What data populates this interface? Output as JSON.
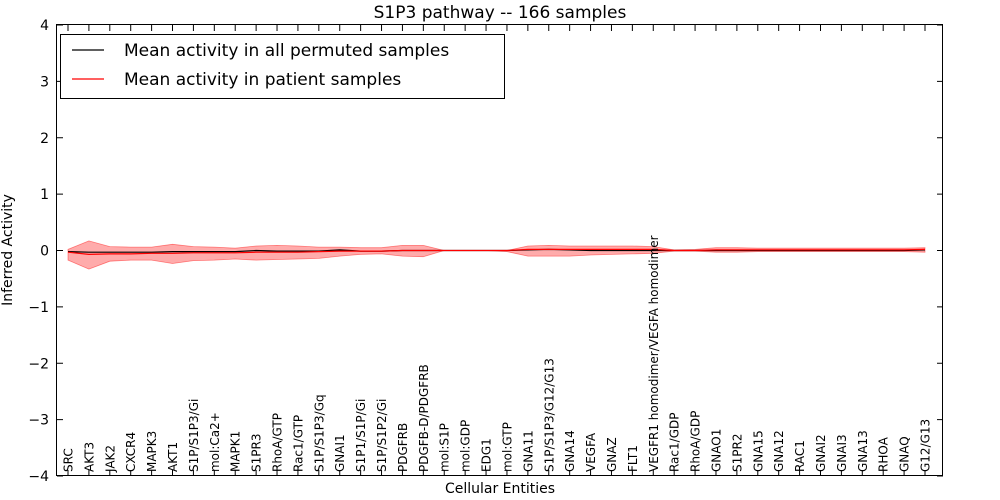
{
  "chart_data": {
    "type": "line",
    "title": "S1P3 pathway -- 166 samples",
    "xlabel": "Cellular Entities",
    "ylabel": "Inferred Activity",
    "ylim": [
      -4,
      4
    ],
    "yticks": [
      4,
      3,
      2,
      1,
      0,
      -1,
      -2,
      -3,
      -4
    ],
    "ytick_labels": [
      "4",
      "3",
      "2",
      "1",
      "0",
      "−1",
      "−2",
      "−3",
      "−4"
    ],
    "grid": false,
    "legend_position": "top-left",
    "categories": [
      "SRC",
      "AKT3",
      "JAK2",
      "CXCR4",
      "MAPK3",
      "AKT1",
      "S1P/S1P3/Gi",
      "mol:Ca2+",
      "MAPK1",
      "S1PR3",
      "RhoA/GTP",
      "Rac1/GTP",
      "S1P/S1P3/Gq",
      "GNAI1",
      "S1P1/S1P/Gi",
      "S1P/S1P2/Gi",
      "PDGFRB",
      "PDGFB-D/PDGFRB",
      "mol:S1P",
      "mol:GDP",
      "EDG1",
      "mol:GTP",
      "GNA11",
      "S1P/S1P3/G12/G13",
      "GNA14",
      "VEGFA",
      "GNAZ",
      "FLT1",
      "VEGFR1 homodimer/VEGFA homodimer",
      "Rac1/GDP",
      "RhoA/GDP",
      "GNAO1",
      "S1PR2",
      "GNA15",
      "GNA12",
      "RAC1",
      "GNAI2",
      "GNAI3",
      "GNA13",
      "RHOA",
      "GNAQ",
      "G12/G13"
    ],
    "series": [
      {
        "name": "Mean activity in all permuted samples",
        "color": "#000000",
        "values": [
          -0.02,
          -0.03,
          -0.03,
          -0.03,
          -0.03,
          -0.02,
          -0.02,
          -0.02,
          -0.02,
          0.0,
          -0.01,
          -0.01,
          -0.01,
          0.01,
          -0.01,
          -0.01,
          0.0,
          0.0,
          0.0,
          0.0,
          0.0,
          0.0,
          0.01,
          0.02,
          0.01,
          0.0,
          0.0,
          0.0,
          0.0,
          0.0,
          0.0,
          0.0,
          0.0,
          0.0,
          0.0,
          0.0,
          0.0,
          0.0,
          0.0,
          0.0,
          0.0,
          0.01
        ]
      },
      {
        "name": "Mean activity in patient samples",
        "color": "#ff0000",
        "values": [
          -0.03,
          -0.07,
          -0.06,
          -0.06,
          -0.05,
          -0.05,
          -0.04,
          -0.04,
          -0.04,
          -0.03,
          -0.03,
          -0.03,
          -0.02,
          -0.01,
          -0.01,
          -0.01,
          0.0,
          0.0,
          0.0,
          0.0,
          0.0,
          0.0,
          0.02,
          0.02,
          0.02,
          0.02,
          0.02,
          0.02,
          0.02,
          0.0,
          0.0,
          0.01,
          0.01,
          0.01,
          0.01,
          0.01,
          0.01,
          0.01,
          0.01,
          0.01,
          0.01,
          0.02
        ],
        "band_upper": [
          0.02,
          0.17,
          0.07,
          0.06,
          0.06,
          0.11,
          0.07,
          0.06,
          0.04,
          0.08,
          0.09,
          0.08,
          0.06,
          0.06,
          0.05,
          0.05,
          0.09,
          0.09,
          0.0,
          0.0,
          0.0,
          0.0,
          0.08,
          0.09,
          0.08,
          0.08,
          0.08,
          0.08,
          0.07,
          0.01,
          0.02,
          0.05,
          0.05,
          0.04,
          0.04,
          0.04,
          0.04,
          0.04,
          0.04,
          0.04,
          0.04,
          0.05
        ],
        "band_lower": [
          -0.17,
          -0.33,
          -0.19,
          -0.17,
          -0.17,
          -0.23,
          -0.18,
          -0.17,
          -0.15,
          -0.17,
          -0.16,
          -0.15,
          -0.14,
          -0.1,
          -0.07,
          -0.06,
          -0.1,
          -0.11,
          0.0,
          0.0,
          0.0,
          -0.02,
          -0.1,
          -0.1,
          -0.1,
          -0.08,
          -0.07,
          -0.06,
          -0.05,
          -0.01,
          -0.01,
          -0.03,
          -0.03,
          -0.02,
          -0.02,
          -0.02,
          -0.02,
          -0.02,
          -0.02,
          -0.02,
          -0.02,
          -0.03
        ]
      }
    ]
  }
}
